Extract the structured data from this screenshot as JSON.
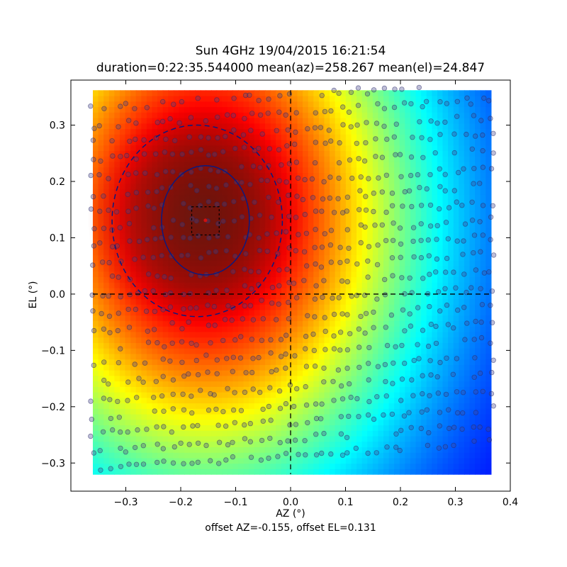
{
  "chart_data": {
    "type": "heatmap",
    "title": "Sun 4GHz 19/04/2015 16:21:54",
    "subtitle": "duration=0:22:35.544000 mean(az)=258.267 mean(el)=24.847",
    "xlabel": "AZ (°)",
    "ylabel": "EL (°)",
    "footer": "offset AZ=-0.155, offset EL=0.131",
    "xlim": [
      -0.4,
      0.4
    ],
    "ylim": [
      -0.35,
      0.38
    ],
    "x_ticks": [
      -0.3,
      -0.2,
      -0.1,
      0.0,
      0.1,
      0.2,
      0.3,
      0.4
    ],
    "x_tick_labels": [
      "−0.3",
      "−0.2",
      "−0.1",
      "0.0",
      "0.1",
      "0.2",
      "0.3",
      "0.4"
    ],
    "y_ticks": [
      -0.3,
      -0.2,
      -0.1,
      0.0,
      0.1,
      0.2,
      0.3
    ],
    "y_tick_labels": [
      "−0.3",
      "−0.2",
      "−0.1",
      "0.0",
      "0.1",
      "0.2",
      "0.3"
    ],
    "heatmap_extent": {
      "x": [
        -0.36,
        0.365
      ],
      "y": [
        -0.32,
        0.362
      ]
    },
    "colormap": "jet",
    "peak": {
      "az": -0.155,
      "el": 0.131
    },
    "crosshair": {
      "x": 0.0,
      "y": 0.0
    },
    "ellipses": [
      {
        "name": "inner",
        "cx": -0.155,
        "cy": 0.131,
        "rx": 0.08,
        "ry": 0.097,
        "style": "solid",
        "color": "#0a1a80"
      },
      {
        "name": "outer",
        "cx": -0.17,
        "cy": 0.13,
        "rx": 0.155,
        "ry": 0.17,
        "style": "dashed",
        "color": "#0a1a80"
      }
    ],
    "peak_box": {
      "x": [
        -0.18,
        -0.13
      ],
      "y": [
        0.105,
        0.155
      ]
    },
    "scan_lines": {
      "count": 22,
      "y_start": -0.31,
      "y_end": 0.33,
      "az_range": [
        -0.36,
        0.365
      ],
      "slope": 0.18
    },
    "grid": false,
    "legend": "none"
  }
}
